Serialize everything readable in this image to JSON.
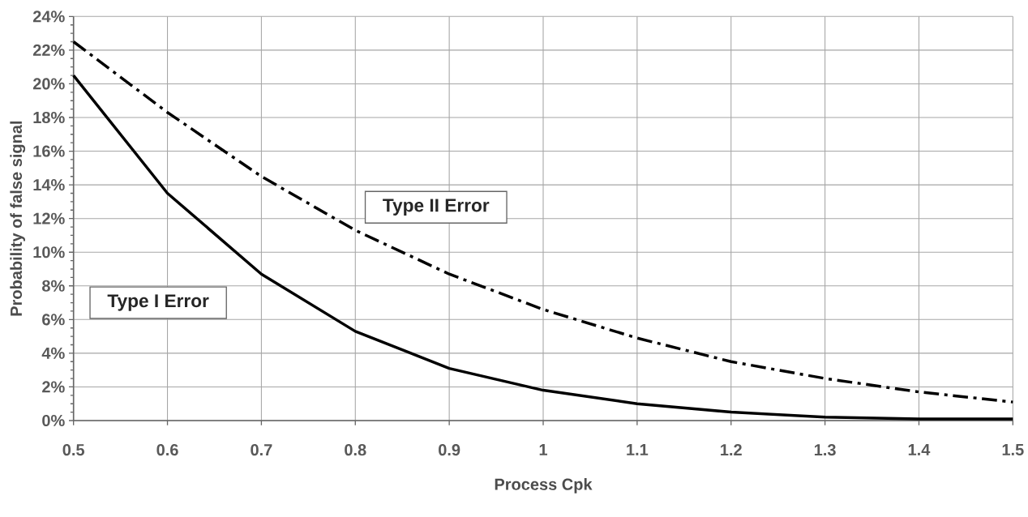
{
  "chart_data": {
    "type": "line",
    "xlabel": "Process Cpk",
    "ylabel": "Probability of false signal",
    "x": [
      0.5,
      0.6,
      0.7,
      0.8,
      0.9,
      1.0,
      1.1,
      1.2,
      1.3,
      1.4,
      1.5
    ],
    "series": [
      {
        "name": "Type I Error",
        "color": "#000000",
        "line_style": "solid",
        "values": [
          20.5,
          13.5,
          8.7,
          5.3,
          3.1,
          1.8,
          1.0,
          0.5,
          0.2,
          0.1,
          0.1
        ]
      },
      {
        "name": "Type II Error",
        "color": "#000000",
        "line_style": "dashdot",
        "values": [
          22.5,
          18.3,
          14.5,
          11.3,
          8.7,
          6.6,
          4.9,
          3.5,
          2.5,
          1.7,
          1.1
        ]
      }
    ],
    "xlim": [
      0.5,
      1.5
    ],
    "ylim": [
      0,
      24
    ],
    "xticks": [
      0.5,
      0.6,
      0.7,
      0.8,
      0.9,
      1,
      1.1,
      1.2,
      1.3,
      1.4,
      1.5
    ],
    "yticks": [
      {
        "value": 0,
        "label": "0%"
      },
      {
        "value": 2,
        "label": "2%"
      },
      {
        "value": 4,
        "label": "4%"
      },
      {
        "value": 6,
        "label": "6%"
      },
      {
        "value": 8,
        "label": "8%"
      },
      {
        "value": 10,
        "label": "10%"
      },
      {
        "value": 12,
        "label": "12%"
      },
      {
        "value": 14,
        "label": "14%"
      },
      {
        "value": 16,
        "label": "16%"
      },
      {
        "value": 18,
        "label": "18%"
      },
      {
        "value": 20,
        "label": "20%"
      },
      {
        "value": 22,
        "label": "22%"
      },
      {
        "value": 24,
        "label": "24%"
      }
    ],
    "grid": true,
    "legend": false,
    "marker": "none"
  }
}
